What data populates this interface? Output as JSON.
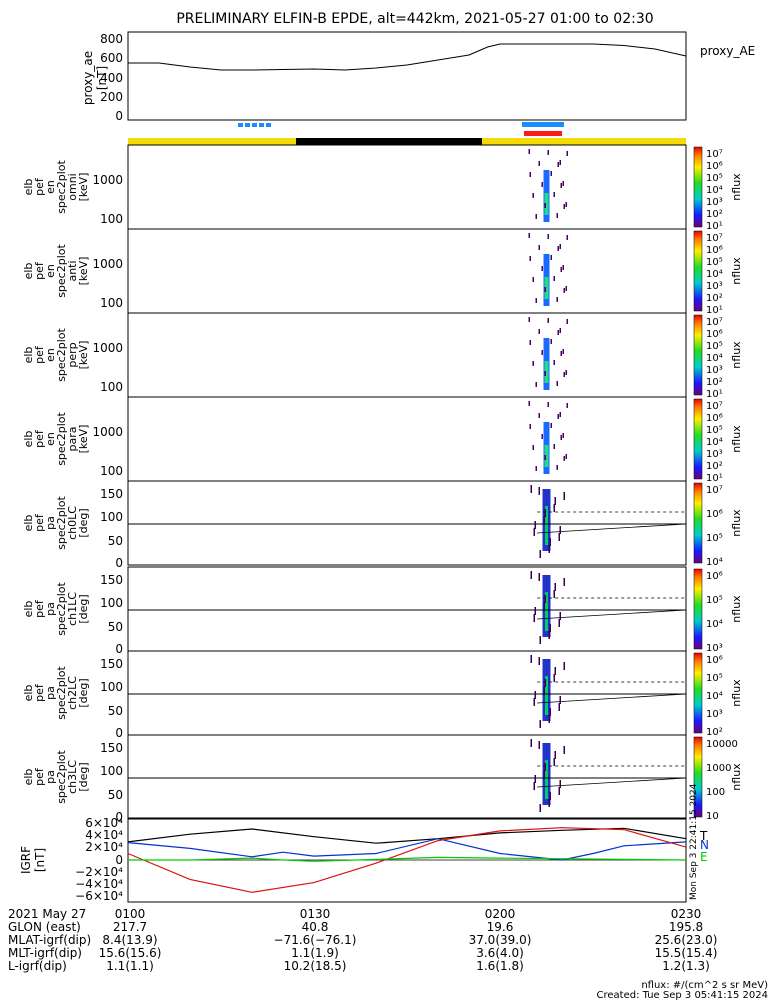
{
  "title": "PRELIMINARY ELFIN-B EPDE, alt=442km, 2021-05-27 01:00 to 02:30",
  "legend_right": "proxy_AE",
  "colors": {
    "state_bar_yellow": "#f5dc00",
    "state_bar_black": "#000000",
    "marker_blue": "#1a8cff",
    "marker_red": "#ff1a1a",
    "line_black": "#000000",
    "line_blue": "#0033cc",
    "line_red": "#dd1111",
    "line_green": "#00cc00"
  },
  "colorbar_unit": "nflux",
  "panels": [
    {
      "ylabel": [
        "elb",
        "pef",
        "en",
        "spec2plot",
        "omni",
        "[keV]"
      ],
      "yticks": [
        "1000",
        "100"
      ],
      "cbar_ticks": [
        "10⁷",
        "10⁶",
        "10⁵",
        "10⁴",
        "10³",
        "10²",
        "10¹"
      ]
    },
    {
      "ylabel": [
        "elb",
        "pef",
        "en",
        "spec2plot",
        "anti",
        "[keV]"
      ],
      "yticks": [
        "1000",
        "100"
      ],
      "cbar_ticks": [
        "10⁷",
        "10⁶",
        "10⁵",
        "10⁴",
        "10³",
        "10²",
        "10¹"
      ]
    },
    {
      "ylabel": [
        "elb",
        "pef",
        "en",
        "spec2plot",
        "perp",
        "[keV]"
      ],
      "yticks": [
        "1000",
        "100"
      ],
      "cbar_ticks": [
        "10⁷",
        "10⁶",
        "10⁵",
        "10⁴",
        "10³",
        "10²",
        "10¹"
      ]
    },
    {
      "ylabel": [
        "elb",
        "pef",
        "en",
        "spec2plot",
        "para",
        "[keV]"
      ],
      "yticks": [
        "1000",
        "100"
      ],
      "cbar_ticks": [
        "10⁷",
        "10⁶",
        "10⁵",
        "10⁴",
        "10³",
        "10²",
        "10¹"
      ]
    },
    {
      "ylabel": [
        "elb",
        "pef",
        "pa",
        "spec2plot",
        "ch0LC",
        "[deg]"
      ],
      "yticks": [
        "150",
        "100",
        "50",
        "0"
      ],
      "cbar_ticks": [
        "10⁷",
        "10⁶",
        "10⁵",
        "10⁴"
      ]
    },
    {
      "ylabel": [
        "elb",
        "pef",
        "pa",
        "spec2plot",
        "ch1LC",
        "[deg]"
      ],
      "yticks": [
        "150",
        "100",
        "50",
        "0"
      ],
      "cbar_ticks": [
        "10⁶",
        "10⁵",
        "10⁴",
        "10³"
      ]
    },
    {
      "ylabel": [
        "elb",
        "pef",
        "pa",
        "spec2plot",
        "ch2LC",
        "[deg]"
      ],
      "yticks": [
        "150",
        "100",
        "50",
        "0"
      ],
      "cbar_ticks": [
        "10⁶",
        "10⁵",
        "10⁴",
        "10³",
        "10²"
      ]
    },
    {
      "ylabel": [
        "elb",
        "pef",
        "pa",
        "spec2plot",
        "ch3LC",
        "[deg]"
      ],
      "yticks": [
        "150",
        "100",
        "50",
        "0"
      ],
      "cbar_ticks": [
        "10000",
        "1000",
        "100",
        "10"
      ]
    }
  ],
  "igrf": {
    "ylabel": [
      "IGRF",
      "[nT]"
    ],
    "yticks": [
      "6×10⁴",
      "4×10⁴",
      "2×10⁴",
      "0",
      "−2×10⁴",
      "−4×10⁴",
      "−6×10⁴"
    ],
    "legend": [
      "T",
      "N",
      "E"
    ],
    "side_text": "Mon Sep  3 22:41:15 2024"
  },
  "footer": {
    "rows": [
      {
        "label": "2021 May 27",
        "values": [
          "0100",
          "0130",
          "0200",
          "0230"
        ]
      },
      {
        "label": "GLON (east)",
        "values": [
          "217.7",
          "40.8",
          "19.6",
          "195.8"
        ]
      },
      {
        "label": "MLAT-igrf(dip)",
        "values": [
          "8.4(13.9)",
          "−71.6(−76.1)",
          "37.0(39.0)",
          "25.6(23.0)"
        ]
      },
      {
        "label": "MLT-igrf(dip)",
        "values": [
          "15.6(15.6)",
          "1.1(1.9)",
          "3.6(4.0)",
          "15.5(15.4)"
        ]
      },
      {
        "label": "L-igrf(dip)",
        "values": [
          "1.1(1.1)",
          "10.2(18.5)",
          "1.6(1.8)",
          "1.2(1.3)"
        ]
      }
    ],
    "nflux_note": "nflux: #/(cm^2 s sr MeV)",
    "created": "Created: Tue Sep  3 05:41:15 2024"
  },
  "chart_data": [
    {
      "type": "line",
      "ylabel": "proxy_ae [nT]",
      "yticks": [
        800,
        600,
        400,
        200,
        0
      ],
      "ylim": [
        -30,
        850
      ],
      "x_range_min": [
        0,
        90
      ],
      "series": [
        {
          "name": "proxy_AE",
          "x": [
            0,
            5,
            10,
            15,
            20,
            25,
            30,
            35,
            40,
            45,
            50,
            55,
            58,
            60,
            65,
            70,
            75,
            80,
            85,
            90
          ],
          "y": [
            540,
            540,
            500,
            470,
            470,
            475,
            480,
            470,
            490,
            520,
            570,
            620,
            700,
            730,
            730,
            730,
            730,
            715,
            680,
            610
          ]
        }
      ]
    },
    {
      "type": "line",
      "ylabel": "IGRF [nT]",
      "ylim": [
        -65000,
        65000
      ],
      "x_range_min": [
        0,
        90
      ],
      "series": [
        {
          "name": "T",
          "x": [
            0,
            10,
            20,
            30,
            40,
            50,
            60,
            70,
            80,
            90
          ],
          "y": [
            28000,
            40000,
            48000,
            36000,
            26000,
            33000,
            42000,
            46000,
            49000,
            33000
          ]
        },
        {
          "name": "N",
          "x": [
            0,
            10,
            20,
            25,
            30,
            40,
            50,
            60,
            70,
            75,
            80,
            90
          ],
          "y": [
            27000,
            18000,
            5000,
            12000,
            6000,
            10000,
            33000,
            10000,
            0,
            10000,
            22000,
            28000
          ]
        },
        {
          "name": "",
          "x": [
            0,
            10,
            20,
            30,
            40,
            50,
            60,
            70,
            80,
            90
          ],
          "y": [
            10000,
            -30000,
            -50000,
            -35000,
            -5000,
            30000,
            45000,
            50000,
            47000,
            20000
          ]
        },
        {
          "name": "E",
          "x": [
            0,
            10,
            20,
            25,
            30,
            40,
            50,
            60,
            70,
            80,
            90
          ],
          "y": [
            0,
            0,
            3000,
            0,
            -2000,
            1000,
            4000,
            3000,
            2000,
            1000,
            0
          ]
        }
      ]
    }
  ]
}
